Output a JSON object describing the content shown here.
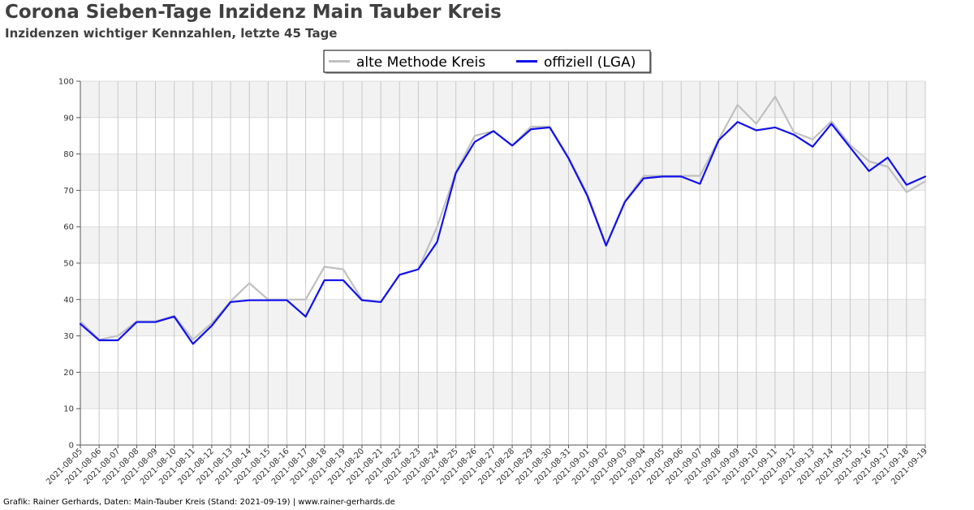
{
  "title": "Corona Sieben-Tage Inzidenz Main Tauber Kreis",
  "subtitle": "Inzidenzen wichtiger Kennzahlen, letzte 45 Tage",
  "footer": "Grafik: Rainer Gerhards, Daten: Main-Tauber Kreis (Stand: 2021-09-19) | www.rainer-gerhards.de",
  "chart_data": {
    "type": "line",
    "title": "Corona Sieben-Tage Inzidenz Main Tauber Kreis",
    "subtitle": "Inzidenzen wichtiger Kennzahlen, letzte 45 Tage",
    "xlabel": "",
    "ylabel": "",
    "ylim": [
      0,
      100
    ],
    "yticks": [
      0,
      10,
      20,
      30,
      40,
      50,
      60,
      70,
      80,
      90,
      100
    ],
    "grid": true,
    "legend_position": "top-center",
    "x": [
      "2021-08-05",
      "2021-08-06",
      "2021-08-07",
      "2021-08-08",
      "2021-08-09",
      "2021-08-10",
      "2021-08-11",
      "2021-08-12",
      "2021-08-13",
      "2021-08-14",
      "2021-08-15",
      "2021-08-16",
      "2021-08-17",
      "2021-08-18",
      "2021-08-19",
      "2021-08-20",
      "2021-08-21",
      "2021-08-22",
      "2021-08-23",
      "2021-08-24",
      "2021-08-25",
      "2021-08-26",
      "2021-08-27",
      "2021-08-28",
      "2021-08-29",
      "2021-08-30",
      "2021-08-31",
      "2021-09-01",
      "2021-09-02",
      "2021-09-03",
      "2021-09-04",
      "2021-09-05",
      "2021-09-06",
      "2021-09-07",
      "2021-09-08",
      "2021-09-09",
      "2021-09-10",
      "2021-09-11",
      "2021-09-12",
      "2021-09-13",
      "2021-09-14",
      "2021-09-15",
      "2021-09-16",
      "2021-09-17",
      "2021-09-18",
      "2021-09-19"
    ],
    "series": [
      {
        "name": "alte Methode Kreis",
        "color": "#c0c0c0",
        "values": [
          34.0,
          29.0,
          30.0,
          34.0,
          34.0,
          35.5,
          29.0,
          33.5,
          39.5,
          44.5,
          40.0,
          40.0,
          40.0,
          49.0,
          48.3,
          40.0,
          39.3,
          46.8,
          48.3,
          60.0,
          75.0,
          85.0,
          86.3,
          82.3,
          87.5,
          87.5,
          79.0,
          69.0,
          55.0,
          67.0,
          74.0,
          74.0,
          74.0,
          74.0,
          84.0,
          93.5,
          88.3,
          95.8,
          86.0,
          84.0,
          89.0,
          82.5,
          78.0,
          76.5,
          69.5,
          72.5
        ]
      },
      {
        "name": "offiziell (LGA)",
        "color": "#1111ee",
        "values": [
          33.3,
          28.8,
          28.8,
          33.8,
          33.8,
          35.3,
          27.8,
          32.8,
          39.3,
          39.8,
          39.8,
          39.8,
          35.3,
          45.3,
          45.3,
          39.8,
          39.3,
          46.8,
          48.3,
          55.8,
          74.8,
          83.3,
          86.3,
          82.3,
          86.8,
          87.3,
          78.8,
          68.5,
          54.8,
          66.8,
          73.3,
          73.8,
          73.8,
          71.8,
          83.8,
          88.8,
          86.5,
          87.3,
          85.3,
          82.0,
          88.3,
          81.8,
          75.3,
          79.0,
          71.5,
          73.8
        ]
      }
    ]
  }
}
